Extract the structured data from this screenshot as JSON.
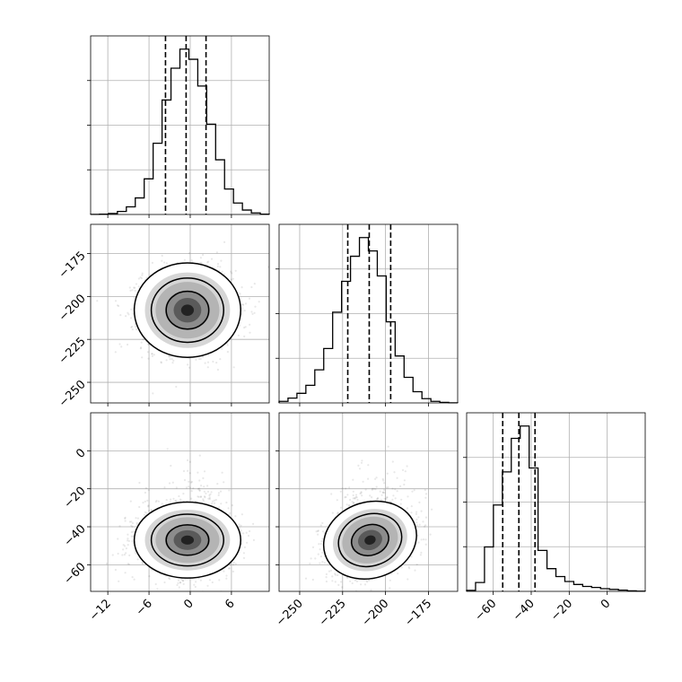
{
  "chart_data": {
    "type": "corner",
    "parameters": [
      {
        "ticks": [
          -12,
          -6,
          0,
          6
        ],
        "tick_labels": [
          "−12",
          "−6",
          "0",
          "6"
        ],
        "range": [
          -14.5,
          11.5
        ],
        "quantiles": [
          -3.6,
          -0.6,
          2.3
        ],
        "histogram": {
          "bin_start": -14.5,
          "bin_width": 1.3,
          "counts": [
            2,
            5,
            15,
            48,
            120,
            260,
            560,
            1120,
            1800,
            2300,
            2600,
            2440,
            2020,
            1420,
            860,
            400,
            180,
            70,
            25,
            5
          ]
        }
      },
      {
        "ticks": [
          -175,
          -200,
          -225,
          -250
        ],
        "tick_labels": [
          "−175",
          "−200",
          "−225",
          "−250"
        ],
        "range": [
          -262,
          -158
        ],
        "quantiles": [
          -222,
          -209.5,
          -197
        ],
        "histogram": {
          "bin_start": -262,
          "bin_width": 5.2,
          "counts": [
            30,
            90,
            180,
            330,
            620,
            1020,
            1700,
            2280,
            2750,
            3100,
            2850,
            2380,
            1520,
            880,
            480,
            210,
            80,
            30,
            10,
            2
          ]
        }
      },
      {
        "ticks": [
          0,
          -20,
          -40,
          -60
        ],
        "tick_labels": [
          "0",
          "−20",
          "−40",
          "−60"
        ],
        "range": [
          -74,
          20
        ],
        "quantiles": [
          -55,
          -46.5,
          -38
        ],
        "histogram": {
          "bin_start": -74,
          "bin_width": 4.7,
          "counts": [
            20,
            180,
            900,
            1750,
            2420,
            3100,
            3350,
            2500,
            830,
            460,
            300,
            200,
            140,
            100,
            80,
            55,
            40,
            25,
            10,
            5
          ]
        },
        "xtick_positions": [
          -60,
          -40,
          -20,
          0
        ],
        "xtick_labels": [
          "−60",
          "−40",
          "−20",
          "0"
        ]
      }
    ],
    "joint": [
      {
        "x_param": 0,
        "y_param": 1,
        "x_center": -0.4,
        "y_center": -208,
        "x_sigma": 3.1,
        "y_sigma": 11,
        "rho": 0.0,
        "levels": [
          1.0,
          1.7,
          2.5
        ]
      },
      {
        "x_param": 0,
        "y_param": 2,
        "x_center": -0.4,
        "y_center": -47,
        "x_sigma": 3.1,
        "y_sigma": 8,
        "rho": 0.0,
        "levels": [
          1.0,
          1.7,
          2.5
        ]
      },
      {
        "x_param": 1,
        "y_param": 2,
        "x_center": -209,
        "y_center": -47,
        "x_sigma": 11,
        "y_sigma": 8,
        "rho": 0.28,
        "levels": [
          1.0,
          1.7,
          2.5
        ]
      }
    ],
    "grid": true,
    "quantile_style": "dashed"
  }
}
